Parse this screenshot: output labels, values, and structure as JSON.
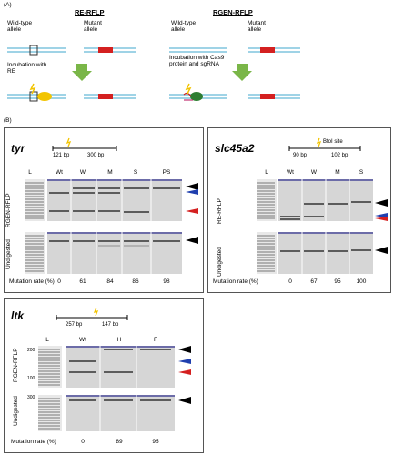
{
  "panel_a": {
    "label": "(A)",
    "re_rflp": {
      "title": "RE-RFLP",
      "wild_type": "Wild-type allele",
      "mutant": "Mutant allele",
      "incubation": "Incubation with RE"
    },
    "rgen_rflp": {
      "title": "RGEN-RFLP",
      "wild_type": "Wild-type allele",
      "mutant": "Mutant allele",
      "incubation": "Incubation with Cas9 protein and sgRNA"
    }
  },
  "panel_b": {
    "label": "(B)",
    "tyr": {
      "gene": "tyr",
      "map_left": "121 bp",
      "map_right": "300 bp",
      "lanes": [
        "L",
        "Wt",
        "W",
        "M",
        "S",
        "PS"
      ],
      "upper_label": "RGEN-RFLP",
      "lower_label": "Undigested",
      "mutation_label": "Mutation rate (%)",
      "mutation_rates": [
        "0",
        "61",
        "84",
        "86",
        "98"
      ]
    },
    "slc45a2": {
      "gene": "slc45a2",
      "site_label": "BfoI site",
      "map_left": "90 bp",
      "map_right": "102 bp",
      "lanes": [
        "L",
        "Wt",
        "W",
        "M",
        "S"
      ],
      "upper_label": "RE-RFLP",
      "lower_label": "Undigested",
      "mutation_label": "Mutation rate (%)",
      "mutation_rates": [
        "0",
        "67",
        "95",
        "100"
      ]
    },
    "ltk": {
      "gene": "ltk",
      "map_left": "257 bp",
      "map_right": "147 bp",
      "lanes": [
        "L",
        "Wt",
        "H",
        "F"
      ],
      "upper_label": "RGEN-RFLP",
      "lower_label": "Undigested",
      "mutation_label": "Mutation rate (%)",
      "mutation_rates": [
        "0",
        "89",
        "95"
      ],
      "ladder_values": [
        "200",
        "100",
        "300"
      ]
    }
  },
  "colors": {
    "dna": "#9fd3e6",
    "mutation": "#d42020",
    "arrow": "#7ab648",
    "enzyme": "#f2c400",
    "cas9": "#2e7d32",
    "arrow_black": "#000000",
    "arrow_blue": "#1f3fae",
    "arrow_red": "#d42020",
    "gel": "#dcdcdc"
  }
}
